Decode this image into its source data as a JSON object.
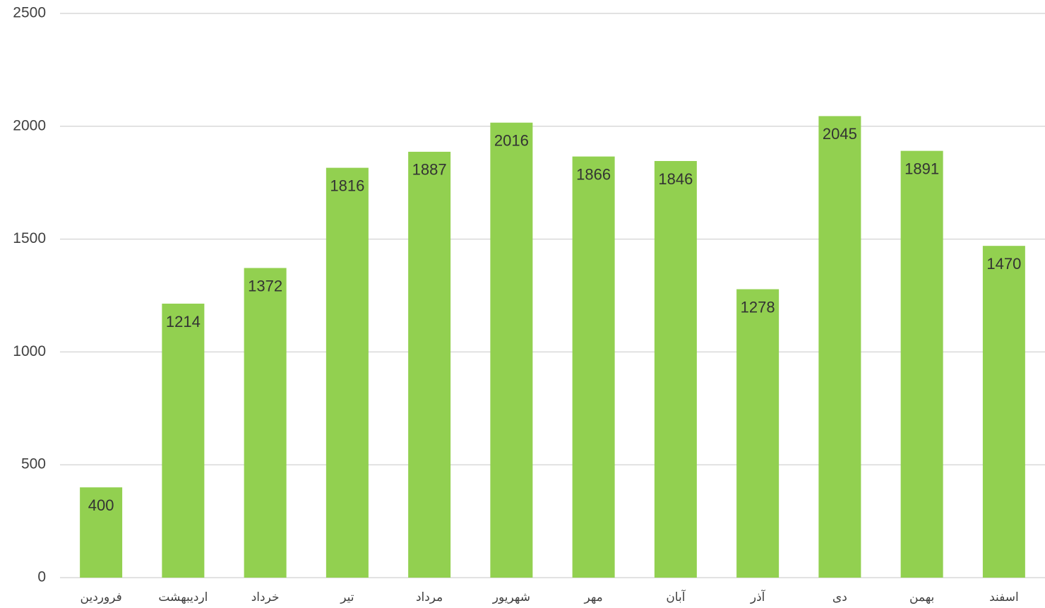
{
  "chart_data": {
    "type": "bar",
    "categories": [
      "فروردین",
      "اردیبهشت",
      "خرداد",
      "تیر",
      "مرداد",
      "شهریور",
      "مهر",
      "آبان",
      "آذر",
      "دی",
      "بهمن",
      "اسفند"
    ],
    "values": [
      400,
      1214,
      1372,
      1816,
      1887,
      2016,
      1866,
      1846,
      1278,
      2045,
      1891,
      1470
    ],
    "color": "#92d050",
    "ylim": [
      0,
      2500
    ],
    "yticks": [
      0,
      500,
      1000,
      1500,
      2000,
      2500
    ],
    "grid": true
  }
}
